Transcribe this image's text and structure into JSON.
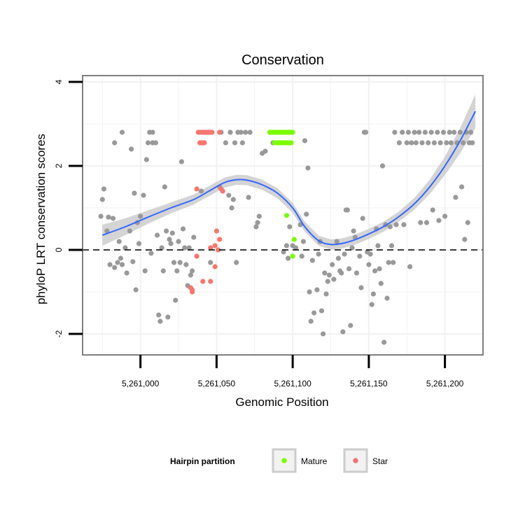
{
  "chart_data": {
    "type": "scatter",
    "title": "Conservation",
    "xlabel": "Genomic Position",
    "ylabel": "phyloP LRT conservation scores",
    "xlim": [
      5260962,
      5261225
    ],
    "ylim": [
      -2.5,
      4.15
    ],
    "x_ticks": [
      5261000,
      5261050,
      5261100,
      5261150,
      5261200
    ],
    "x_tick_labels": [
      "5,261,000",
      "5,261,050",
      "5,261,100",
      "5,261,150",
      "5,261,200"
    ],
    "y_ticks": [
      -2,
      0,
      2,
      4
    ],
    "y_tick_labels": [
      "-2",
      "0",
      "2",
      "4"
    ],
    "reference_line": {
      "y": 0,
      "style": "dashed"
    },
    "colors": {
      "other": "#999999",
      "Mature": "#7CFC00",
      "Star": "#F8766D",
      "smooth": "#3366FF",
      "band": "#CCCCCC",
      "grid": "#F2F2F2",
      "frame": "#7F7F7F"
    },
    "legend": {
      "title": "Hairpin partition",
      "position": "bottom",
      "entries": [
        {
          "label": "Mature",
          "color": "#7CFC00"
        },
        {
          "label": "Star",
          "color": "#F8766D"
        }
      ]
    },
    "smooth": {
      "x": [
        5260975,
        5260990,
        5261005,
        5261020,
        5261035,
        5261045,
        5261055,
        5261063,
        5261070,
        5261080,
        5261090,
        5261100,
        5261108,
        5261117,
        5261125,
        5261132,
        5261140,
        5261150,
        5261160,
        5261170,
        5261180,
        5261190,
        5261200,
        5261210,
        5261220
      ],
      "y": [
        0.35,
        0.55,
        0.78,
        1.0,
        1.2,
        1.4,
        1.6,
        1.67,
        1.66,
        1.55,
        1.35,
        1.0,
        0.55,
        0.22,
        0.13,
        0.15,
        0.23,
        0.38,
        0.56,
        0.8,
        1.1,
        1.5,
        2.0,
        2.6,
        3.3
      ],
      "se": [
        0.25,
        0.2,
        0.16,
        0.13,
        0.12,
        0.12,
        0.12,
        0.12,
        0.12,
        0.12,
        0.12,
        0.12,
        0.12,
        0.12,
        0.12,
        0.12,
        0.12,
        0.12,
        0.12,
        0.12,
        0.14,
        0.17,
        0.22,
        0.3,
        0.4
      ]
    },
    "series": [
      {
        "name": "Other",
        "points": [
          [
            5260974,
            0.8
          ],
          [
            5260975,
            1.2
          ],
          [
            5260976,
            1.45
          ],
          [
            5260978,
            0.45
          ],
          [
            5260979,
            0.78
          ],
          [
            5260980,
            -0.35
          ],
          [
            5260982,
            0.75
          ],
          [
            5260983,
            -0.42
          ],
          [
            5260983,
            2.55
          ],
          [
            5260985,
            -0.3
          ],
          [
            5260986,
            0.2
          ],
          [
            5260987,
            -0.2
          ],
          [
            5260988,
            -0.35
          ],
          [
            5260988,
            2.8
          ],
          [
            5260990,
            0.05
          ],
          [
            5260991,
            -0.55
          ],
          [
            5260993,
            0.45
          ],
          [
            5260994,
            2.4
          ],
          [
            5260995,
            -0.28
          ],
          [
            5260996,
            1.35
          ],
          [
            5260997,
            -0.95
          ],
          [
            5260998,
            0.65
          ],
          [
            5260999,
            0.15
          ],
          [
            5261000,
            0.8
          ],
          [
            5261002,
            1.3
          ],
          [
            5261003,
            -0.5
          ],
          [
            5261004,
            2.15
          ],
          [
            5261005,
            2.55
          ],
          [
            5261006,
            2.8
          ],
          [
            5261007,
            -0.08
          ],
          [
            5261008,
            2.55
          ],
          [
            5261008,
            2.8
          ],
          [
            5261010,
            2.55
          ],
          [
            5261011,
            0.35
          ],
          [
            5261012,
            -1.55
          ],
          [
            5261013,
            -1.7
          ],
          [
            5261014,
            0.05
          ],
          [
            5261015,
            -0.5
          ],
          [
            5261016,
            1.5
          ],
          [
            5261017,
            0.45
          ],
          [
            5261018,
            -1.6
          ],
          [
            5261019,
            0.25
          ],
          [
            5261020,
            0.15
          ],
          [
            5261021,
            0.4
          ],
          [
            5261022,
            -0.3
          ],
          [
            5261023,
            -1.2
          ],
          [
            5261024,
            -0.5
          ],
          [
            5261025,
            0.2
          ],
          [
            5261026,
            -0.3
          ],
          [
            5261027,
            2.1
          ],
          [
            5261028,
            0.5
          ],
          [
            5261029,
            0.05
          ],
          [
            5261030,
            -0.35
          ],
          [
            5261031,
            -0.85
          ],
          [
            5261032,
            0.05
          ],
          [
            5261033,
            -0.6
          ],
          [
            5261034,
            -0.5
          ],
          [
            5261035,
            0.3
          ],
          [
            5261040,
            1.4
          ],
          [
            5261046,
            -0.3
          ],
          [
            5261052,
            1.5
          ],
          [
            5261053,
            2.8
          ],
          [
            5261054,
            1.4
          ],
          [
            5261056,
            2.55
          ],
          [
            5261058,
            1.3
          ],
          [
            5261059,
            2.8
          ],
          [
            5261060,
            1.0
          ],
          [
            5261061,
            1.2
          ],
          [
            5261062,
            2.55
          ],
          [
            5261063,
            -0.3
          ],
          [
            5261064,
            2.8
          ],
          [
            5261066,
            2.8
          ],
          [
            5261067,
            2.55
          ],
          [
            5261069,
            2.8
          ],
          [
            5261071,
            1.25
          ],
          [
            5261072,
            2.8
          ],
          [
            5261076,
            0.55
          ],
          [
            5261077,
            0.65
          ],
          [
            5261078,
            0.8
          ],
          [
            5261080,
            2.3
          ],
          [
            5261082,
            2.35
          ],
          [
            5261085,
            2.8
          ],
          [
            5261087,
            2.55
          ],
          [
            5261094,
            -0.05
          ],
          [
            5261096,
            0.1
          ],
          [
            5261097,
            -0.2
          ],
          [
            5261098,
            0.55
          ],
          [
            5261100,
            0.1
          ],
          [
            5261102,
            0.05
          ],
          [
            5261105,
            0.6
          ],
          [
            5261106,
            -0.15
          ],
          [
            5261107,
            0.2
          ],
          [
            5261108,
            2.6
          ],
          [
            5261109,
            0.85
          ],
          [
            5261110,
            1.95
          ],
          [
            5261111,
            -1.0
          ],
          [
            5261112,
            -1.7
          ],
          [
            5261113,
            -0.25
          ],
          [
            5261114,
            -1.5
          ],
          [
            5261116,
            -0.95
          ],
          [
            5261117,
            -0.1
          ],
          [
            5261118,
            0.2
          ],
          [
            5261119,
            -1.45
          ],
          [
            5261120,
            -2.0
          ],
          [
            5261121,
            -0.55
          ],
          [
            5261122,
            -1.05
          ],
          [
            5261123,
            -0.75
          ],
          [
            5261124,
            -0.6
          ],
          [
            5261126,
            -0.35
          ],
          [
            5261127,
            -0.7
          ],
          [
            5261129,
            0.2
          ],
          [
            5261130,
            -0.2
          ],
          [
            5261131,
            -0.5
          ],
          [
            5261132,
            -0.55
          ],
          [
            5261133,
            -1.95
          ],
          [
            5261134,
            -0.1
          ],
          [
            5261135,
            0.95
          ],
          [
            5261136,
            0.95
          ],
          [
            5261137,
            -0.45
          ],
          [
            5261138,
            -1.8
          ],
          [
            5261139,
            0.05
          ],
          [
            5261140,
            0.45
          ],
          [
            5261141,
            0.3
          ],
          [
            5261142,
            -0.55
          ],
          [
            5261144,
            -0.15
          ],
          [
            5261145,
            -0.9
          ],
          [
            5261146,
            0.75
          ],
          [
            5261147,
            2.8
          ],
          [
            5261148,
            2.8
          ],
          [
            5261149,
            -0.05
          ],
          [
            5261150,
            -0.35
          ],
          [
            5261151,
            -0.1
          ],
          [
            5261152,
            -1.3
          ],
          [
            5261153,
            -1.05
          ],
          [
            5261154,
            -0.5
          ],
          [
            5261155,
            0.5
          ],
          [
            5261156,
            0.1
          ],
          [
            5261157,
            -0.45
          ],
          [
            5261158,
            -0.8
          ],
          [
            5261159,
            2.0
          ],
          [
            5261160,
            -2.2
          ],
          [
            5261161,
            0.6
          ],
          [
            5261162,
            -1.15
          ],
          [
            5261163,
            -0.3
          ],
          [
            5261164,
            0.55
          ],
          [
            5261165,
            0.1
          ],
          [
            5261166,
            -0.3
          ],
          [
            5261167,
            2.8
          ],
          [
            5261168,
            0.6
          ],
          [
            5261170,
            2.55
          ],
          [
            5261172,
            2.8
          ],
          [
            5261173,
            0.6
          ],
          [
            5261175,
            2.55
          ],
          [
            5261176,
            2.8
          ],
          [
            5261177,
            -0.4
          ],
          [
            5261178,
            2.55
          ],
          [
            5261180,
            2.8
          ],
          [
            5261181,
            2.55
          ],
          [
            5261183,
            2.8
          ],
          [
            5261184,
            0.65
          ],
          [
            5261185,
            2.55
          ],
          [
            5261187,
            2.8
          ],
          [
            5261188,
            0.65
          ],
          [
            5261189,
            2.55
          ],
          [
            5261191,
            2.8
          ],
          [
            5261192,
            0.95
          ],
          [
            5261193,
            2.55
          ],
          [
            5261195,
            2.8
          ],
          [
            5261196,
            0.7
          ],
          [
            5261197,
            2.55
          ],
          [
            5261199,
            2.8
          ],
          [
            5261200,
            0.8
          ],
          [
            5261201,
            2.55
          ],
          [
            5261203,
            2.8
          ],
          [
            5261204,
            2.55
          ],
          [
            5261206,
            2.8
          ],
          [
            5261207,
            1.25
          ],
          [
            5261208,
            2.55
          ],
          [
            5261210,
            2.8
          ],
          [
            5261211,
            1.5
          ],
          [
            5261212,
            2.55
          ],
          [
            5261213,
            0.25
          ],
          [
            5261214,
            2.8
          ],
          [
            5261215,
            0.65
          ],
          [
            5261216,
            2.55
          ],
          [
            5261217,
            2.8
          ],
          [
            5261218,
            2.55
          ]
        ]
      },
      {
        "name": "Mature",
        "points": [
          [
            5261085,
            2.8
          ],
          [
            5261086,
            2.8
          ],
          [
            5261087,
            2.8
          ],
          [
            5261088,
            2.8
          ],
          [
            5261089,
            2.8
          ],
          [
            5261090,
            2.8
          ],
          [
            5261091,
            2.8
          ],
          [
            5261092,
            2.8
          ],
          [
            5261093,
            2.8
          ],
          [
            5261094,
            2.8
          ],
          [
            5261095,
            2.8
          ],
          [
            5261096,
            2.8
          ],
          [
            5261097,
            2.8
          ],
          [
            5261098,
            2.8
          ],
          [
            5261099,
            2.8
          ],
          [
            5261100,
            2.8
          ],
          [
            5261088,
            2.55
          ],
          [
            5261089,
            2.55
          ],
          [
            5261090,
            2.55
          ],
          [
            5261091,
            2.55
          ],
          [
            5261092,
            2.55
          ],
          [
            5261093,
            2.55
          ],
          [
            5261094,
            2.55
          ],
          [
            5261095,
            2.55
          ],
          [
            5261096,
            2.55
          ],
          [
            5261097,
            2.55
          ],
          [
            5261098,
            2.55
          ],
          [
            5261099,
            2.55
          ],
          [
            5261096,
            0.82
          ],
          [
            5261101,
            0.25
          ],
          [
            5261100,
            -0.15
          ]
        ]
      },
      {
        "name": "Star",
        "points": [
          [
            5261038,
            2.8
          ],
          [
            5261039,
            2.8
          ],
          [
            5261040,
            2.8
          ],
          [
            5261041,
            2.8
          ],
          [
            5261042,
            2.8
          ],
          [
            5261043,
            2.8
          ],
          [
            5261044,
            2.8
          ],
          [
            5261045,
            2.8
          ],
          [
            5261046,
            2.8
          ],
          [
            5261047,
            2.8
          ],
          [
            5261052,
            2.8
          ],
          [
            5261039,
            2.55
          ],
          [
            5261040,
            2.55
          ],
          [
            5261041,
            2.55
          ],
          [
            5261042,
            2.55
          ],
          [
            5261037,
            1.45
          ],
          [
            5261053,
            1.45
          ],
          [
            5261054,
            1.4
          ],
          [
            5261050,
            0.45
          ],
          [
            5261052,
            0.25
          ],
          [
            5261049,
            0.1
          ],
          [
            5261051,
            0.0
          ],
          [
            5261046,
            0.05
          ],
          [
            5261037,
            -0.15
          ],
          [
            5261049,
            -0.4
          ],
          [
            5261041,
            -0.75
          ],
          [
            5261046,
            -0.75
          ],
          [
            5261033,
            -0.9
          ],
          [
            5261034,
            -0.95
          ],
          [
            5261034,
            -1.0
          ]
        ]
      }
    ]
  }
}
